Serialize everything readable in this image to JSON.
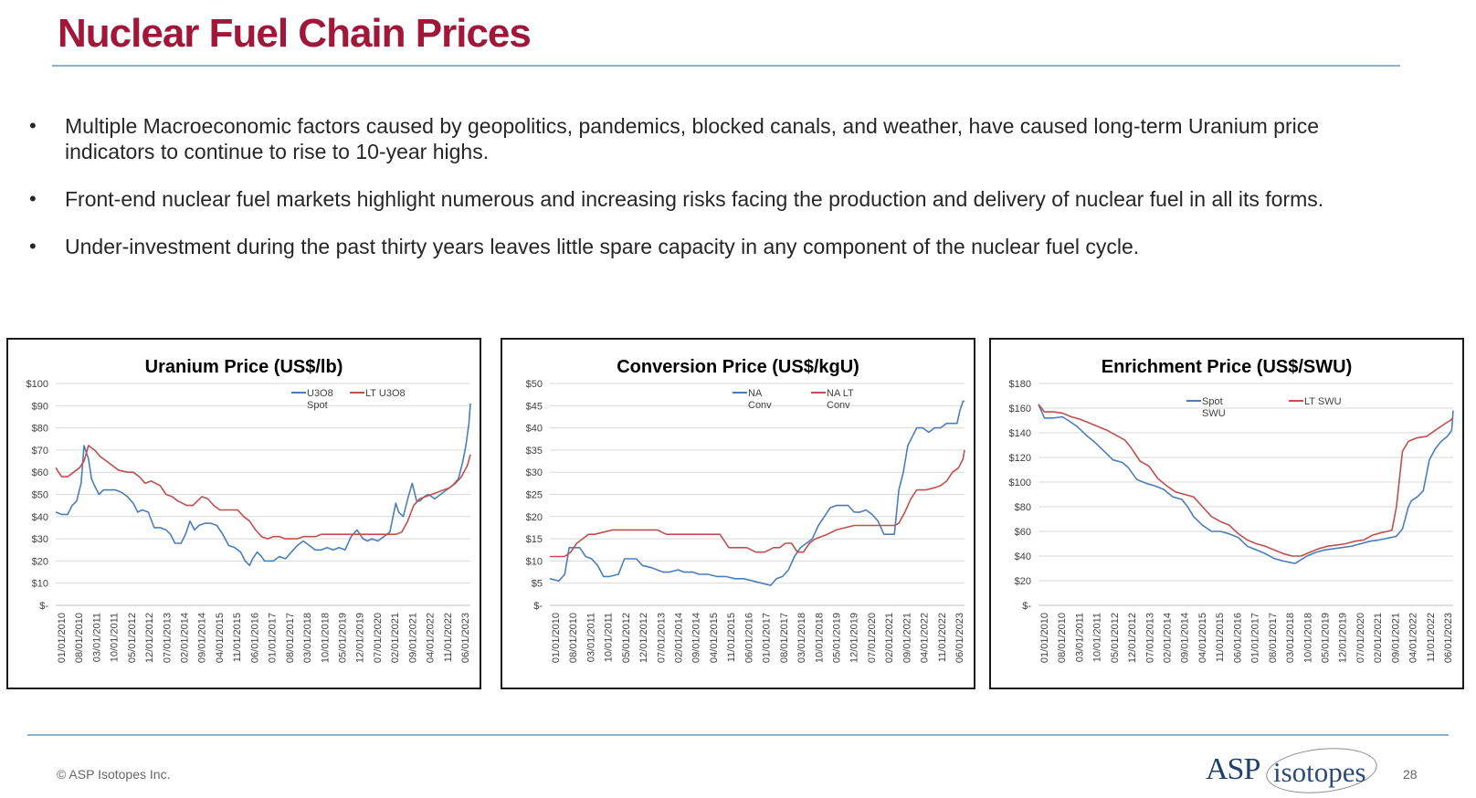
{
  "title": "Nuclear Fuel Chain Prices",
  "bullets": [
    "Multiple Macroeconomic factors caused by geopolitics, pandemics, blocked canals, and weather, have caused long-term Uranium price indicators to continue to rise to 10-year highs.",
    "Front-end nuclear fuel markets highlight numerous and increasing risks facing the production and delivery of nuclear fuel in all its forms.",
    "Under-investment during the past thirty years leaves little spare capacity in any component of the nuclear fuel cycle."
  ],
  "bullet_symbol": "•",
  "footer": {
    "copyright": "© ASP Isotopes Inc.",
    "page_number": "28",
    "logo_text_asp": "ASP",
    "logo_text_isotopes": "isotopes"
  },
  "colors": {
    "title": "#a0173a",
    "spot_series": "#4a7ebb",
    "lt_series": "#c0504d",
    "rule": "#8fb3c4"
  },
  "chart_data": [
    {
      "type": "line",
      "title": "Uranium Price (US$/lb)",
      "ylim": [
        0,
        100
      ],
      "ytick_labels": [
        "$-",
        "$10",
        "$20",
        "$30",
        "$40",
        "$50",
        "$60",
        "$70",
        "$80",
        "$90",
        "$100"
      ],
      "x_tick_labels": [
        "01/01/2010",
        "08/01/2010",
        "03/01/2011",
        "10/01/2011",
        "05/01/2012",
        "12/01/2012",
        "07/01/2013",
        "02/01/2014",
        "09/01/2014",
        "04/01/2015",
        "11/01/2015",
        "06/01/2016",
        "01/01/2017",
        "08/01/2017",
        "03/01/2018",
        "10/01/2018",
        "05/01/2019",
        "12/01/2019",
        "07/01/2020",
        "02/01/2021",
        "09/01/2021",
        "04/01/2022",
        "11/01/2022",
        "06/01/2023"
      ],
      "x_range": [
        2010.0,
        2023.9
      ],
      "grid": true,
      "series": [
        {
          "name": "U3O8 Spot",
          "color": "#4a7ebb",
          "x": [
            2010.0,
            2010.2,
            2010.4,
            2010.55,
            2010.7,
            2010.85,
            2010.95,
            2011.1,
            2011.2,
            2011.3,
            2011.45,
            2011.6,
            2011.8,
            2012.0,
            2012.2,
            2012.4,
            2012.6,
            2012.75,
            2012.9,
            2013.1,
            2013.3,
            2013.5,
            2013.7,
            2013.85,
            2014.0,
            2014.2,
            2014.35,
            2014.5,
            2014.65,
            2014.8,
            2015.0,
            2015.2,
            2015.4,
            2015.6,
            2015.8,
            2016.0,
            2016.2,
            2016.35,
            2016.5,
            2016.6,
            2016.75,
            2016.9,
            2017.0,
            2017.15,
            2017.3,
            2017.5,
            2017.7,
            2017.9,
            2018.1,
            2018.3,
            2018.5,
            2018.7,
            2018.9,
            2019.1,
            2019.3,
            2019.5,
            2019.7,
            2019.9,
            2020.1,
            2020.3,
            2020.45,
            2020.6,
            2020.8,
            2021.0,
            2021.2,
            2021.4,
            2021.5,
            2021.65,
            2021.8,
            2021.95,
            2022.1,
            2022.2,
            2022.35,
            2022.5,
            2022.7,
            2022.9,
            2023.1,
            2023.3,
            2023.5,
            2023.65,
            2023.75,
            2023.85,
            2023.9
          ],
          "y": [
            42,
            41,
            41,
            45,
            47,
            55,
            72,
            66,
            57,
            54,
            50,
            52,
            52,
            52,
            51,
            49,
            46,
            42,
            43,
            42,
            35,
            35,
            34,
            32,
            28,
            28,
            32,
            38,
            34,
            36,
            37,
            37,
            36,
            32,
            27,
            26,
            24,
            20,
            18,
            21,
            24,
            22,
            20,
            20,
            20,
            22,
            21,
            24,
            27,
            29,
            27,
            25,
            25,
            26,
            25,
            26,
            25,
            31,
            34,
            30,
            29,
            30,
            29,
            31,
            33,
            46,
            42,
            40,
            48,
            55,
            47,
            47,
            49,
            50,
            48,
            50,
            52,
            54,
            57,
            65,
            72,
            82,
            91
          ]
        },
        {
          "name": "LT U3O8",
          "color": "#c0504d",
          "x": [
            2010.0,
            2010.2,
            2010.4,
            2010.6,
            2010.8,
            2010.95,
            2011.1,
            2011.3,
            2011.5,
            2011.7,
            2011.9,
            2012.1,
            2012.4,
            2012.6,
            2012.8,
            2013.0,
            2013.2,
            2013.5,
            2013.7,
            2013.9,
            2014.1,
            2014.4,
            2014.6,
            2014.9,
            2015.1,
            2015.3,
            2015.5,
            2015.7,
            2015.9,
            2016.1,
            2016.3,
            2016.5,
            2016.7,
            2016.9,
            2017.1,
            2017.3,
            2017.5,
            2017.7,
            2017.9,
            2018.1,
            2018.3,
            2018.5,
            2018.7,
            2018.9,
            2019.1,
            2019.3,
            2019.6,
            2019.9,
            2020.2,
            2020.5,
            2020.8,
            2021.0,
            2021.2,
            2021.4,
            2021.6,
            2021.8,
            2022.0,
            2022.2,
            2022.4,
            2022.6,
            2022.8,
            2023.0,
            2023.2,
            2023.4,
            2023.6,
            2023.8,
            2023.9
          ],
          "y": [
            62,
            58,
            58,
            60,
            62,
            65,
            72,
            70,
            67,
            65,
            63,
            61,
            60,
            60,
            58,
            55,
            56,
            54,
            50,
            49,
            47,
            45,
            45,
            49,
            48,
            45,
            43,
            43,
            43,
            43,
            40,
            38,
            34,
            31,
            30,
            31,
            31,
            30,
            30,
            30,
            31,
            31,
            31,
            32,
            32,
            32,
            32,
            32,
            32,
            32,
            32,
            32,
            32,
            32,
            33,
            38,
            45,
            48,
            49,
            50,
            51,
            52,
            53,
            55,
            58,
            63,
            68
          ]
        }
      ]
    },
    {
      "type": "line",
      "title": "Conversion Price (US$/kgU)",
      "ylim": [
        0,
        50
      ],
      "ytick_labels": [
        "$-",
        "$5",
        "$10",
        "$15",
        "$20",
        "$25",
        "$30",
        "$35",
        "$40",
        "$45",
        "$50"
      ],
      "x_tick_labels": [
        "01/01/2010",
        "08/01/2010",
        "03/01/2011",
        "10/01/2011",
        "05/01/2012",
        "12/01/2012",
        "07/01/2013",
        "02/01/2014",
        "09/01/2014",
        "04/01/2015",
        "11/01/2015",
        "06/01/2016",
        "01/01/2017",
        "08/01/2017",
        "03/01/2018",
        "10/01/2018",
        "05/01/2019",
        "12/01/2019",
        "07/01/2020",
        "02/01/2021",
        "09/01/2021",
        "04/01/2022",
        "11/01/2022",
        "06/01/2023"
      ],
      "x_range": [
        2010.0,
        2023.9
      ],
      "grid": true,
      "series": [
        {
          "name": "NA Conv",
          "color": "#4a7ebb",
          "x": [
            2010.0,
            2010.3,
            2010.5,
            2010.65,
            2010.8,
            2011.0,
            2011.2,
            2011.4,
            2011.6,
            2011.8,
            2012.0,
            2012.3,
            2012.5,
            2012.7,
            2012.9,
            2013.1,
            2013.4,
            2013.6,
            2013.8,
            2014.0,
            2014.3,
            2014.5,
            2014.8,
            2015.0,
            2015.3,
            2015.6,
            2015.9,
            2016.2,
            2016.5,
            2016.8,
            2017.1,
            2017.4,
            2017.6,
            2017.8,
            2018.0,
            2018.2,
            2018.4,
            2018.6,
            2018.8,
            2019.0,
            2019.2,
            2019.4,
            2019.6,
            2019.8,
            2020.0,
            2020.2,
            2020.4,
            2020.6,
            2020.8,
            2021.0,
            2021.2,
            2021.4,
            2021.55,
            2021.7,
            2021.85,
            2022.0,
            2022.15,
            2022.3,
            2022.5,
            2022.7,
            2022.9,
            2023.1,
            2023.3,
            2023.5,
            2023.65,
            2023.75,
            2023.85,
            2023.9
          ],
          "y": [
            6,
            5.5,
            7,
            13,
            13,
            13,
            11,
            10.5,
            9,
            6.5,
            6.5,
            7,
            10.5,
            10.5,
            10.5,
            9,
            8.5,
            8,
            7.5,
            7.5,
            8,
            7.5,
            7.5,
            7,
            7,
            6.5,
            6.5,
            6,
            6,
            5.5,
            5,
            4.5,
            6,
            6.5,
            8,
            11,
            13,
            14,
            15,
            18,
            20,
            22,
            22.5,
            22.5,
            22.5,
            21,
            21,
            21.5,
            20.5,
            19,
            16,
            16,
            16,
            26,
            30,
            36,
            38,
            40,
            40,
            39,
            40,
            40,
            41,
            41,
            41,
            44,
            46,
            46
          ]
        },
        {
          "name": "NA LT Conv",
          "color": "#c0504d",
          "x": [
            2010.0,
            2010.3,
            2010.5,
            2010.7,
            2010.9,
            2011.1,
            2011.3,
            2011.5,
            2011.8,
            2012.1,
            2012.4,
            2012.7,
            2013.0,
            2013.3,
            2013.6,
            2013.9,
            2014.2,
            2014.5,
            2014.8,
            2015.1,
            2015.4,
            2015.7,
            2016.0,
            2016.3,
            2016.6,
            2016.9,
            2017.2,
            2017.5,
            2017.7,
            2017.9,
            2018.1,
            2018.3,
            2018.5,
            2018.7,
            2018.9,
            2019.1,
            2019.3,
            2019.6,
            2019.9,
            2020.2,
            2020.5,
            2020.8,
            2021.1,
            2021.4,
            2021.55,
            2021.7,
            2021.9,
            2022.1,
            2022.3,
            2022.6,
            2022.9,
            2023.1,
            2023.3,
            2023.5,
            2023.7,
            2023.85,
            2023.9
          ],
          "y": [
            11,
            11,
            11,
            12,
            14,
            15,
            16,
            16,
            16.5,
            17,
            17,
            17,
            17,
            17,
            17,
            16,
            16,
            16,
            16,
            16,
            16,
            16,
            13,
            13,
            13,
            12,
            12,
            13,
            13,
            14,
            14,
            12,
            12,
            14,
            15,
            15.5,
            16,
            17,
            17.5,
            18,
            18,
            18,
            18,
            18,
            18,
            18.5,
            21,
            24,
            26,
            26,
            26.5,
            27,
            28,
            30,
            31,
            33,
            35
          ]
        }
      ]
    },
    {
      "type": "line",
      "title": "Enrichment Price (US$/SWU)",
      "ylim": [
        0,
        180
      ],
      "ytick_labels": [
        "$-",
        "$20",
        "$40",
        "$60",
        "$80",
        "$100",
        "$120",
        "$140",
        "$160",
        "$180"
      ],
      "x_tick_labels": [
        "01/01/2010",
        "08/01/2010",
        "03/01/2011",
        "10/01/2011",
        "05/01/2012",
        "12/01/2012",
        "07/01/2013",
        "02/01/2014",
        "09/01/2014",
        "04/01/2015",
        "11/01/2015",
        "06/01/2016",
        "01/01/2017",
        "08/01/2017",
        "03/01/2018",
        "10/01/2018",
        "05/01/2019",
        "12/01/2019",
        "07/01/2020",
        "02/01/2021",
        "09/01/2021",
        "04/01/2022",
        "11/01/2022",
        "06/01/2023"
      ],
      "x_range": [
        2010.0,
        2023.9
      ],
      "grid": true,
      "series": [
        {
          "name": "Spot SWU",
          "color": "#4a7ebb",
          "x": [
            2010.0,
            2010.2,
            2010.5,
            2010.8,
            2011.0,
            2011.3,
            2011.6,
            2011.9,
            2012.2,
            2012.5,
            2012.8,
            2013.0,
            2013.3,
            2013.6,
            2013.9,
            2014.2,
            2014.5,
            2014.8,
            2015.0,
            2015.2,
            2015.5,
            2015.8,
            2016.1,
            2016.4,
            2016.7,
            2017.0,
            2017.3,
            2017.6,
            2017.9,
            2018.2,
            2018.4,
            2018.6,
            2018.8,
            2019.0,
            2019.3,
            2019.6,
            2019.9,
            2020.2,
            2020.5,
            2020.8,
            2021.1,
            2021.4,
            2021.6,
            2021.8,
            2022.0,
            2022.2,
            2022.4,
            2022.5,
            2022.7,
            2022.9,
            2023.1,
            2023.3,
            2023.5,
            2023.7,
            2023.85,
            2023.9
          ],
          "y": [
            163,
            152,
            152,
            153,
            150,
            145,
            138,
            132,
            125,
            118,
            116,
            112,
            102,
            99,
            97,
            94,
            88,
            86,
            80,
            72,
            65,
            60,
            60,
            58,
            55,
            48,
            45,
            42,
            38,
            36,
            35,
            34,
            37,
            40,
            43,
            45,
            46,
            47,
            48,
            50,
            52,
            53,
            54,
            55,
            56,
            62,
            80,
            85,
            88,
            93,
            118,
            127,
            133,
            137,
            142,
            158
          ]
        },
        {
          "name": "LT SWU",
          "color": "#c0504d",
          "x": [
            2010.0,
            2010.2,
            2010.5,
            2010.8,
            2011.1,
            2011.4,
            2011.7,
            2012.0,
            2012.3,
            2012.6,
            2012.9,
            2013.1,
            2013.4,
            2013.7,
            2014.0,
            2014.3,
            2014.6,
            2014.9,
            2015.2,
            2015.5,
            2015.8,
            2016.1,
            2016.4,
            2016.7,
            2017.0,
            2017.3,
            2017.6,
            2017.9,
            2018.2,
            2018.5,
            2018.8,
            2019.1,
            2019.4,
            2019.7,
            2020.0,
            2020.3,
            2020.6,
            2020.9,
            2021.2,
            2021.5,
            2021.7,
            2021.85,
            2022.0,
            2022.2,
            2022.4,
            2022.7,
            2023.0,
            2023.3,
            2023.6,
            2023.8,
            2023.9
          ],
          "y": [
            163,
            157,
            157,
            156,
            153,
            151,
            148,
            145,
            142,
            138,
            134,
            128,
            117,
            113,
            103,
            97,
            92,
            90,
            88,
            80,
            72,
            68,
            65,
            58,
            53,
            50,
            48,
            45,
            42,
            40,
            40,
            43,
            46,
            48,
            49,
            50,
            52,
            53,
            57,
            59,
            60,
            61,
            80,
            125,
            133,
            136,
            137,
            142,
            147,
            150,
            152
          ]
        }
      ]
    }
  ]
}
